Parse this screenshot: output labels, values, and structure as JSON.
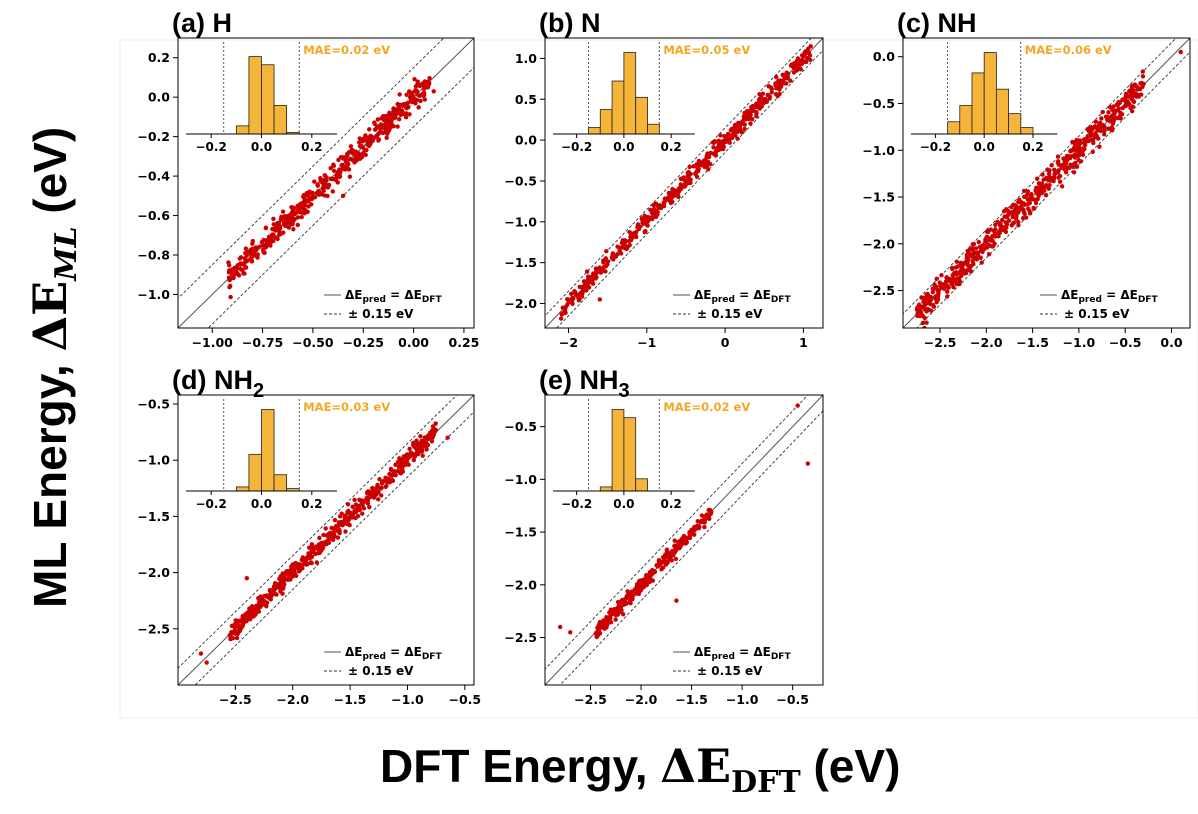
{
  "ylabel": {
    "prefix": "ML  Energy, ",
    "delta": "ΔE",
    "sub": "ML",
    "suffix": " (eV)"
  },
  "xlabel": {
    "prefix": "DFT  Energy, ",
    "delta": "ΔE",
    "sub": "DFT",
    "suffix": " (eV)"
  },
  "legend": {
    "line1_pre": "ΔE",
    "line1_sub1": "pred",
    "line1_mid": " = ΔE",
    "line1_sub2": "DFT",
    "line2": "±  0.15 eV"
  },
  "colors": {
    "points": "#cc0000",
    "hist": "#f5b43a",
    "mae": "#f5a623"
  },
  "chart_data": [
    {
      "type": "scatter",
      "id": "a",
      "title": "(a) H",
      "title_sub": "",
      "xlim": [
        -1.17,
        0.3
      ],
      "ylim": [
        -1.17,
        0.3
      ],
      "xticks": [
        -1.0,
        -0.75,
        -0.5,
        -0.25,
        0.0,
        0.25
      ],
      "xticklabels": [
        "−1.00",
        "−0.75",
        "−0.50",
        "−0.25",
        "0.00",
        "0.25"
      ],
      "yticks": [
        -1.0,
        -0.8,
        -0.6,
        -0.4,
        -0.2,
        0.0,
        0.2
      ],
      "yticklabels": [
        "−1.0",
        "−0.8",
        "−0.6",
        "−0.4",
        "−0.2",
        "0.0",
        "0.2"
      ],
      "x_range": [
        -0.92,
        0.08
      ],
      "y_range": [
        -0.92,
        0.08
      ],
      "noise": 0.03,
      "n": 500,
      "outliers": [
        [
          -0.35,
          -0.5
        ],
        [
          -0.9,
          -0.9
        ],
        [
          0.1,
          0.03
        ]
      ],
      "mae": "MAE=0.02 eV",
      "hist": {
        "xlim": [
          -0.3,
          0.3
        ],
        "xticks": [
          -0.2,
          0.0,
          0.2
        ],
        "xticklabels": [
          "−0.2",
          "0.0",
          "0.2"
        ],
        "edges": [
          -0.1,
          -0.05,
          0.0,
          0.05,
          0.1,
          0.15
        ],
        "counts": [
          0.1,
          0.95,
          0.85,
          0.35,
          0.02
        ]
      }
    },
    {
      "type": "scatter",
      "id": "b",
      "title": "(b) N",
      "title_sub": "",
      "xlim": [
        -2.3,
        1.25
      ],
      "ylim": [
        -2.3,
        1.25
      ],
      "xticks": [
        -2,
        -1,
        0,
        1
      ],
      "xticklabels": [
        "−2",
        "−1",
        "0",
        "1"
      ],
      "yticks": [
        -2.0,
        -1.5,
        -1.0,
        -0.5,
        0.0,
        0.5,
        1.0
      ],
      "yticklabels": [
        "−2.0",
        "−1.5",
        "−1.0",
        "−0.5",
        "0.0",
        "0.5",
        "1.0"
      ],
      "x_range": [
        -2.1,
        1.1
      ],
      "y_range": [
        -2.1,
        1.1
      ],
      "noise": 0.05,
      "n": 500,
      "outliers": [
        [
          -1.6,
          -1.95
        ],
        [
          -0.7,
          -0.75
        ]
      ],
      "mae": "MAE=0.05 eV",
      "hist": {
        "xlim": [
          -0.3,
          0.3
        ],
        "xticks": [
          -0.2,
          0.0,
          0.2
        ],
        "xticklabels": [
          "−0.2",
          "0.0",
          "0.2"
        ],
        "edges": [
          -0.15,
          -0.1,
          -0.05,
          0.0,
          0.05,
          0.1,
          0.15
        ],
        "counts": [
          0.08,
          0.3,
          0.65,
          1.0,
          0.45,
          0.12
        ]
      }
    },
    {
      "type": "scatter",
      "id": "c",
      "title": "(c) NH",
      "title_sub": "",
      "xlim": [
        -2.9,
        0.2
      ],
      "ylim": [
        -2.9,
        0.2
      ],
      "xticks": [
        -2.5,
        -2.0,
        -1.5,
        -1.0,
        -0.5,
        0.0
      ],
      "xticklabels": [
        "−2.5",
        "−2.0",
        "−1.5",
        "−1.0",
        "−0.5",
        "0.0"
      ],
      "yticks": [
        -2.5,
        -2.0,
        -1.5,
        -1.0,
        -0.5,
        0.0
      ],
      "yticklabels": [
        "−2.5",
        "−2.0",
        "−1.5",
        "−1.0",
        "−0.5",
        "0.0"
      ],
      "x_range": [
        -2.75,
        -0.3
      ],
      "y_range": [
        -2.75,
        -0.3
      ],
      "noise": 0.07,
      "n": 550,
      "outliers": [
        [
          0.1,
          0.05
        ],
        [
          -2.05,
          -2.2
        ]
      ],
      "mae": "MAE=0.06 eV",
      "hist": {
        "xlim": [
          -0.3,
          0.3
        ],
        "xticks": [
          -0.2,
          0.0,
          0.2
        ],
        "xticklabels": [
          "−0.2",
          "0.0",
          "0.2"
        ],
        "edges": [
          -0.15,
          -0.1,
          -0.05,
          0.0,
          0.05,
          0.1,
          0.15,
          0.2
        ],
        "counts": [
          0.15,
          0.35,
          0.75,
          1.0,
          0.55,
          0.25,
          0.08
        ]
      }
    },
    {
      "type": "scatter",
      "id": "d",
      "title": "(d) NH",
      "title_sub": "2",
      "xlim": [
        -3.0,
        -0.42
      ],
      "ylim": [
        -3.0,
        -0.42
      ],
      "xticks": [
        -2.5,
        -2.0,
        -1.5,
        -1.0,
        -0.5
      ],
      "xticklabels": [
        "−2.5",
        "−2.0",
        "−1.5",
        "−1.0",
        "−0.5"
      ],
      "yticks": [
        -2.5,
        -2.0,
        -1.5,
        -1.0,
        -0.5
      ],
      "yticklabels": [
        "−2.5",
        "−2.0",
        "−1.5",
        "−1.0",
        "−0.5"
      ],
      "x_range": [
        -2.55,
        -0.75
      ],
      "y_range": [
        -2.55,
        -0.75
      ],
      "noise": 0.04,
      "n": 550,
      "outliers": [
        [
          -2.8,
          -2.72
        ],
        [
          -2.75,
          -2.8
        ],
        [
          -2.4,
          -2.05
        ],
        [
          -0.65,
          -0.8
        ]
      ],
      "mae": "MAE=0.03 eV",
      "hist": {
        "xlim": [
          -0.3,
          0.3
        ],
        "xticks": [
          -0.2,
          0.0,
          0.2
        ],
        "xticklabels": [
          "−0.2",
          "0.0",
          "0.2"
        ],
        "edges": [
          -0.1,
          -0.05,
          0.0,
          0.05,
          0.1,
          0.15
        ],
        "counts": [
          0.05,
          0.45,
          1.0,
          0.2,
          0.03
        ]
      }
    },
    {
      "type": "scatter",
      "id": "e",
      "title": "(e) NH",
      "title_sub": "3",
      "xlim": [
        -2.95,
        -0.2
      ],
      "ylim": [
        -2.95,
        -0.2
      ],
      "xticks": [
        -2.5,
        -2.0,
        -1.5,
        -1.0,
        -0.5
      ],
      "xticklabels": [
        "−2.5",
        "−2.0",
        "−1.5",
        "−1.0",
        "−0.5"
      ],
      "yticks": [
        -2.5,
        -2.0,
        -1.5,
        -1.0,
        -0.5
      ],
      "yticklabels": [
        "−2.5",
        "−2.0",
        "−1.5",
        "−1.0",
        "−0.5"
      ],
      "x_range": [
        -2.45,
        -1.3
      ],
      "y_range": [
        -2.45,
        -1.3
      ],
      "noise": 0.03,
      "n": 350,
      "outliers": [
        [
          -2.8,
          -2.4
        ],
        [
          -2.7,
          -2.45
        ],
        [
          -1.65,
          -2.15
        ],
        [
          -0.45,
          -0.3
        ],
        [
          -0.35,
          -0.85
        ]
      ],
      "mae": "MAE=0.02 eV",
      "hist": {
        "xlim": [
          -0.3,
          0.3
        ],
        "xticks": [
          -0.2,
          0.0,
          0.2
        ],
        "xticklabels": [
          "−0.2",
          "0.0",
          "0.2"
        ],
        "edges": [
          -0.1,
          -0.05,
          0.0,
          0.05,
          0.1
        ],
        "counts": [
          0.05,
          1.0,
          0.9,
          0.15
        ]
      }
    }
  ]
}
